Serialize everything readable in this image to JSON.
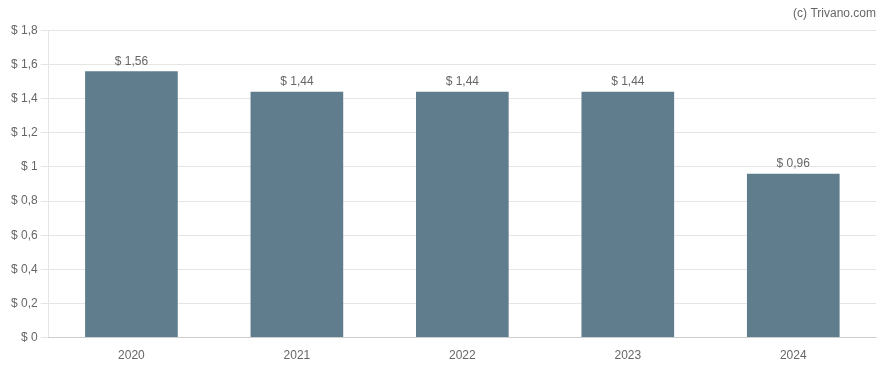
{
  "chart_data": {
    "type": "bar",
    "categories": [
      "2020",
      "2021",
      "2022",
      "2023",
      "2024"
    ],
    "values": [
      1.56,
      1.44,
      1.44,
      1.44,
      0.96
    ],
    "value_labels": [
      "$ 1,56",
      "$ 1,44",
      "$ 1,44",
      "$ 1,44",
      "$ 0,96"
    ],
    "data_labels": true,
    "color": "#5f7d8c",
    "ylim": [
      0,
      1.8
    ],
    "yticks": [
      {
        "value": 0,
        "label": "$ 0"
      },
      {
        "value": 0.2,
        "label": "$ 0,2"
      },
      {
        "value": 0.4,
        "label": "$ 0,4"
      },
      {
        "value": 0.6,
        "label": "$ 0,6"
      },
      {
        "value": 0.8,
        "label": "$ 0,8"
      },
      {
        "value": 1.0,
        "label": "$ 1"
      },
      {
        "value": 1.2,
        "label": "$ 1,2"
      },
      {
        "value": 1.4,
        "label": "$ 1,4"
      },
      {
        "value": 1.6,
        "label": "$ 1,6"
      },
      {
        "value": 1.8,
        "label": "$ 1,8"
      }
    ],
    "grid": true,
    "annotations": [
      "(c) Trivano.com"
    ]
  }
}
